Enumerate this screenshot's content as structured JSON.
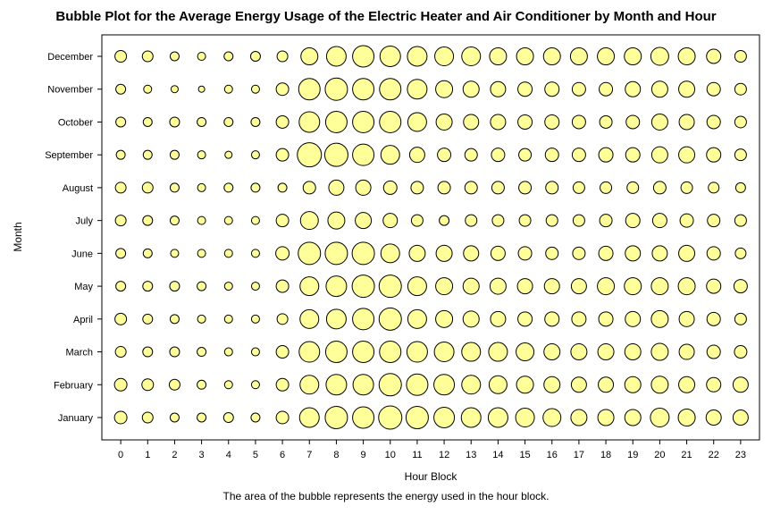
{
  "chart_data": {
    "type": "scatter",
    "title": "Bubble Plot for the Average Energy Usage of the Electric Heater and Air Conditioner by Month and Hour",
    "xlabel": "Hour Block",
    "ylabel": "Month",
    "footnote": "The area of the bubble represents the energy used in the hour block.",
    "x_ticks": [
      0,
      1,
      2,
      3,
      4,
      5,
      6,
      7,
      8,
      9,
      10,
      11,
      12,
      13,
      14,
      15,
      16,
      17,
      18,
      19,
      20,
      21,
      22,
      23
    ],
    "xlim": [
      -0.7,
      23.7
    ],
    "months": [
      "January",
      "February",
      "March",
      "April",
      "May",
      "June",
      "July",
      "August",
      "September",
      "October",
      "November",
      "December"
    ],
    "grid": false,
    "legend": "none",
    "bubble_fill": "#ffff99",
    "bubble_stroke": "#000000",
    "radius_note": "values are relative bubble diameters",
    "sizes": {
      "January": [
        14,
        12,
        10,
        10,
        11,
        10,
        14,
        22,
        25,
        24,
        26,
        25,
        23,
        22,
        22,
        21,
        20,
        18,
        18,
        18,
        21,
        19,
        17,
        17
      ],
      "February": [
        14,
        13,
        12,
        10,
        9,
        9,
        14,
        21,
        23,
        23,
        25,
        24,
        23,
        21,
        20,
        19,
        18,
        17,
        17,
        18,
        19,
        18,
        16,
        17
      ],
      "March": [
        12,
        11,
        11,
        10,
        9,
        9,
        14,
        23,
        24,
        24,
        24,
        23,
        22,
        21,
        21,
        20,
        18,
        18,
        18,
        18,
        19,
        17,
        15,
        14
      ],
      "April": [
        13,
        11,
        10,
        9,
        9,
        9,
        12,
        21,
        22,
        24,
        25,
        21,
        19,
        18,
        17,
        16,
        16,
        16,
        16,
        17,
        19,
        17,
        15,
        13
      ],
      "May": [
        11,
        11,
        11,
        10,
        9,
        9,
        14,
        21,
        23,
        25,
        25,
        21,
        19,
        18,
        18,
        17,
        17,
        17,
        19,
        19,
        19,
        19,
        16,
        15
      ],
      "June": [
        11,
        10,
        9,
        9,
        9,
        9,
        15,
        25,
        25,
        25,
        21,
        18,
        18,
        17,
        16,
        15,
        14,
        14,
        16,
        17,
        17,
        18,
        15,
        12
      ],
      "July": [
        12,
        11,
        10,
        9,
        9,
        9,
        14,
        20,
        19,
        18,
        16,
        13,
        11,
        13,
        13,
        13,
        13,
        13,
        14,
        16,
        16,
        15,
        14,
        13
      ],
      "August": [
        12,
        12,
        10,
        9,
        10,
        10,
        10,
        14,
        17,
        17,
        15,
        14,
        14,
        14,
        14,
        14,
        14,
        13,
        13,
        13,
        14,
        13,
        12,
        11
      ],
      "September": [
        10,
        10,
        10,
        9,
        8,
        9,
        14,
        27,
        26,
        24,
        21,
        17,
        15,
        14,
        15,
        14,
        15,
        15,
        16,
        16,
        18,
        18,
        16,
        13
      ],
      "October": [
        11,
        10,
        11,
        10,
        10,
        10,
        14,
        23,
        24,
        24,
        24,
        21,
        18,
        17,
        17,
        16,
        16,
        15,
        14,
        15,
        18,
        17,
        15,
        13
      ],
      "November": [
        11,
        9,
        8,
        7,
        9,
        9,
        14,
        24,
        25,
        24,
        24,
        22,
        19,
        18,
        17,
        16,
        16,
        15,
        15,
        17,
        18,
        18,
        15,
        13
      ],
      "December": [
        13,
        12,
        10,
        9,
        10,
        11,
        12,
        19,
        22,
        24,
        23,
        22,
        21,
        21,
        19,
        19,
        19,
        19,
        19,
        19,
        20,
        19,
        16,
        13
      ]
    }
  }
}
